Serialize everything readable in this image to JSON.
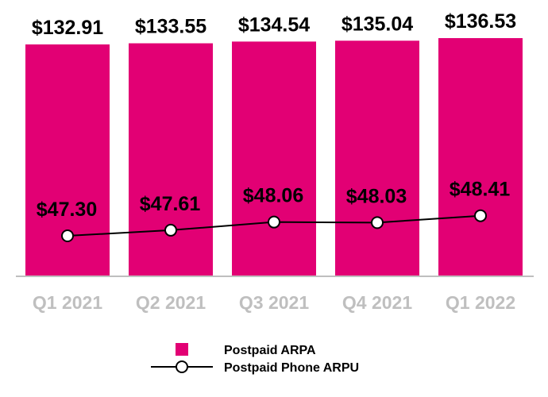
{
  "chart_data": {
    "type": "bar",
    "categories": [
      "Q1 2021",
      "Q2 2021",
      "Q3 2021",
      "Q4 2021",
      "Q1 2022"
    ],
    "series": [
      {
        "name": "Postpaid ARPA",
        "kind": "bar",
        "values": [
          132.91,
          133.55,
          134.54,
          135.04,
          136.53
        ],
        "labels": [
          "$132.91",
          "$133.55",
          "$134.54",
          "$135.04",
          "$136.53"
        ],
        "color": "#e20074"
      },
      {
        "name": "Postpaid Phone ARPU",
        "kind": "line",
        "values": [
          47.3,
          47.61,
          48.06,
          48.03,
          48.41
        ],
        "labels": [
          "$47.30",
          "$47.61",
          "$48.06",
          "$48.03",
          "$48.41"
        ],
        "color": "#000000",
        "marker": "open-circle"
      }
    ],
    "title": "",
    "xlabel": "",
    "ylabel": "",
    "axis_color": "#bfbfbf",
    "tick_label_color": "#bfbfbf",
    "grid": false,
    "legend_position": "bottom-center"
  }
}
